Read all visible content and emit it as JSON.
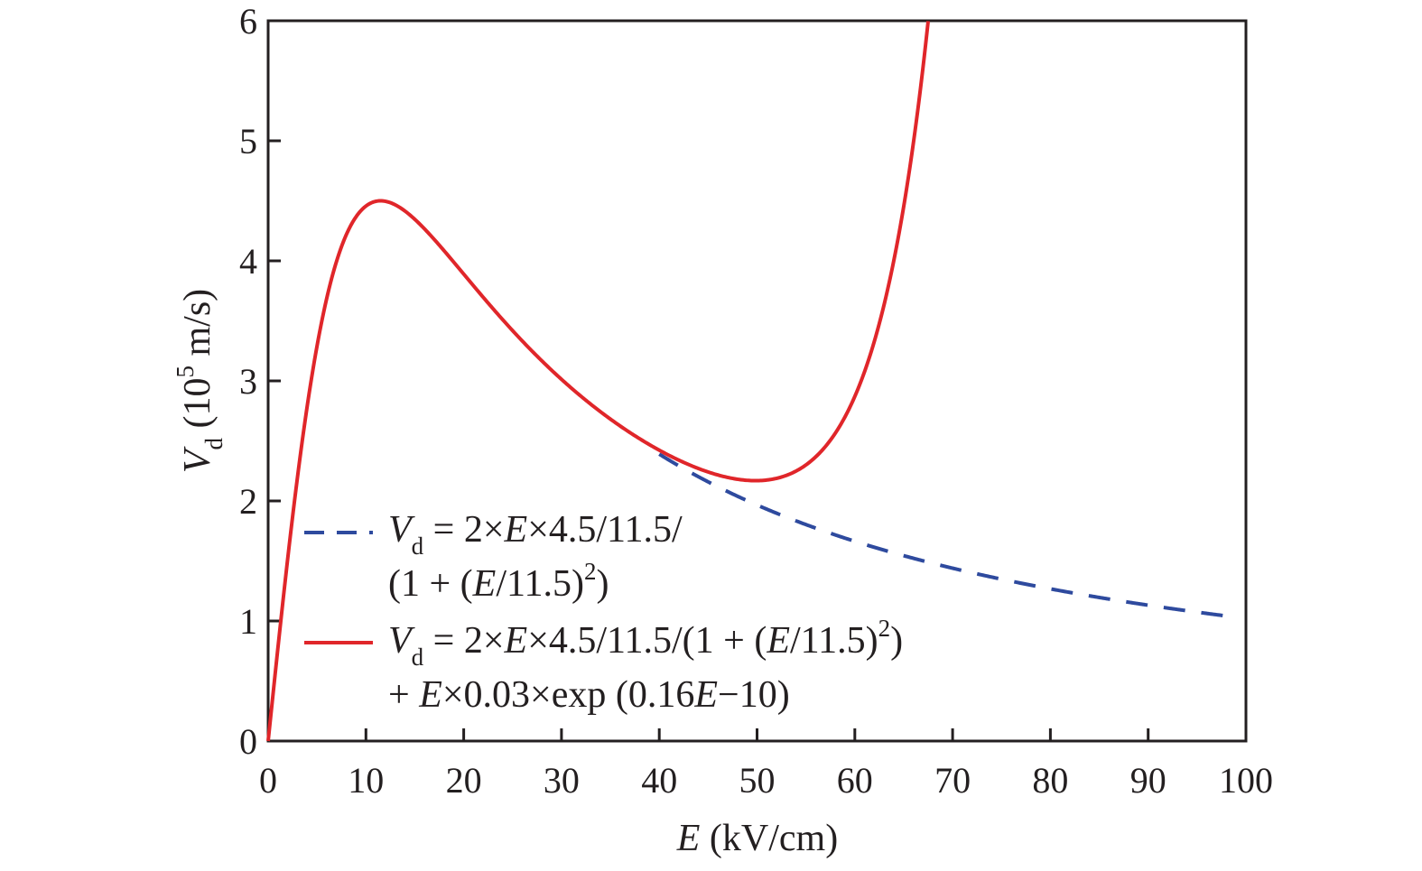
{
  "chart_data": {
    "type": "line",
    "xlabel": {
      "var": "E",
      "unit": " (kV/cm)"
    },
    "ylabel": {
      "var": "V",
      "sub": "d",
      "unit_pre": " (10",
      "sup": "5",
      "unit_post": " m/s)"
    },
    "xlim": [
      0,
      100
    ],
    "ylim": [
      0,
      6
    ],
    "xticks": [
      "0",
      "10",
      "20",
      "30",
      "40",
      "50",
      "60",
      "70",
      "80",
      "90",
      "100"
    ],
    "yticks": [
      "0",
      "1",
      "2",
      "3",
      "4",
      "5",
      "6"
    ],
    "grid": false,
    "legend_position": "lower-left",
    "colors": {
      "dashed": "#2e4a9e",
      "solid": "#e0262a",
      "axis": "#231f20"
    },
    "series": [
      {
        "name": "Vd = 2×E×4.5/11.5/(1 + (E/11.5)²)",
        "style": "dashed",
        "color": "#2e4a9e",
        "x_range": [
          40,
          99
        ],
        "formula": "2*E*4.5/11.5/(1+(E/11.5)^2)",
        "legend": {
          "line1": [
            {
              "t": "V",
              "i": true
            },
            {
              "t": "d",
              "sub": true
            },
            {
              "t": " = 2×"
            },
            {
              "t": "E",
              "i": true
            },
            {
              "t": "×4.5/11.5/"
            }
          ],
          "line2": [
            {
              "t": "(1 + ("
            },
            {
              "t": "E",
              "i": true
            },
            {
              "t": "/11.5)"
            },
            {
              "t": "2",
              "sup": true
            },
            {
              "t": ")"
            }
          ]
        }
      },
      {
        "name": "Vd = 2×E×4.5/11.5/(1 + (E/11.5)²) + E×0.03×exp (0.16E−10)",
        "style": "solid",
        "color": "#e0262a",
        "x_range": [
          0,
          67.5
        ],
        "formula": "2*E*4.5/11.5/(1+(E/11.5)^2) + E*0.03*exp(0.16E-10)",
        "legend": {
          "line1": [
            {
              "t": "V",
              "i": true
            },
            {
              "t": "d",
              "sub": true
            },
            {
              "t": " = 2×"
            },
            {
              "t": "E",
              "i": true
            },
            {
              "t": "×4.5/11.5/(1 + ("
            },
            {
              "t": "E",
              "i": true
            },
            {
              "t": "/11.5)"
            },
            {
              "t": "2",
              "sup": true
            },
            {
              "t": ")"
            }
          ],
          "line2": [
            {
              "t": "+ "
            },
            {
              "t": "E",
              "i": true
            },
            {
              "t": "×0.03×exp (0.16"
            },
            {
              "t": "E",
              "i": true
            },
            {
              "t": "−10)"
            }
          ]
        }
      }
    ]
  }
}
